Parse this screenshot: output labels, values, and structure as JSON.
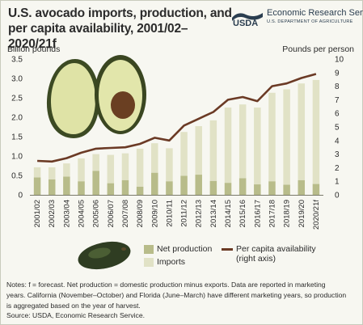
{
  "header": {
    "title_line1": "U.S. avocado imports, production, and",
    "title_line2": "per capita availability, 2001/02–2020/21f",
    "logo_text": "USDA",
    "agency": "Economic Research Service",
    "department": "U.S. DEPARTMENT OF AGRICULTURE"
  },
  "legend": {
    "net_production": "Net production",
    "imports": "Imports",
    "per_capita_line1": "Per capita availability",
    "per_capita_line2": "(right axis)"
  },
  "notes": {
    "line1": "Notes:  f = forecast. Net production = domestic production minus exports. Data are reported in marketing",
    "line2": "years. California (November–October) and Florida (June–March) have different marketing years, so production",
    "line3": "is aggregated based on the year of harvest.",
    "source": "Source: USDA, Economic Research Service."
  },
  "colors": {
    "net_production": "#b8bc8a",
    "imports": "#e1e2c6",
    "per_capita": "#6b3a25",
    "background": "#f7f7f1"
  },
  "chart_data": {
    "type": "bar",
    "stacked": true,
    "categories": [
      "2001/02",
      "2002/03",
      "2003/04",
      "2004/05",
      "2005/06",
      "2006/07",
      "2007/08",
      "2008/09",
      "2009/10",
      "2010/11",
      "2011/12",
      "2012/13",
      "2013/14",
      "2014/15",
      "2015/16",
      "2016/17",
      "2017/18",
      "2018/19",
      "2019/20",
      "2020/21f"
    ],
    "series": [
      {
        "name": "Net production",
        "axis": "left",
        "values": [
          0.45,
          0.4,
          0.47,
          0.35,
          0.62,
          0.3,
          0.38,
          0.21,
          0.57,
          0.35,
          0.49,
          0.52,
          0.36,
          0.31,
          0.43,
          0.27,
          0.35,
          0.26,
          0.38,
          0.28
        ]
      },
      {
        "name": "Imports",
        "axis": "left",
        "values": [
          0.26,
          0.31,
          0.34,
          0.59,
          0.43,
          0.73,
          0.69,
          0.98,
          0.76,
          0.85,
          1.13,
          1.25,
          1.56,
          1.94,
          1.9,
          1.98,
          2.28,
          2.46,
          2.49,
          2.68
        ]
      },
      {
        "name": "Per capita availability",
        "axis": "right",
        "type": "line",
        "values": [
          2.5,
          2.45,
          2.7,
          3.1,
          3.4,
          3.45,
          3.5,
          3.75,
          4.2,
          4.0,
          5.1,
          5.6,
          6.1,
          7.0,
          7.2,
          6.9,
          8.0,
          8.2,
          8.6,
          8.9
        ]
      }
    ],
    "ylabel_left": "Billion pounds",
    "ylabel_right": "Pounds per person",
    "ylim_left": [
      0,
      3.5
    ],
    "ylim_right": [
      0,
      10
    ],
    "yticks_left": [
      "0",
      "0.5",
      "1.0",
      "1.5",
      "2.0",
      "2.5",
      "3.0",
      "3.5"
    ],
    "yticks_right": [
      "0",
      "1",
      "2",
      "3",
      "4",
      "5",
      "6",
      "7",
      "8",
      "9",
      "10"
    ],
    "grid": false,
    "legend_position": "bottom"
  }
}
